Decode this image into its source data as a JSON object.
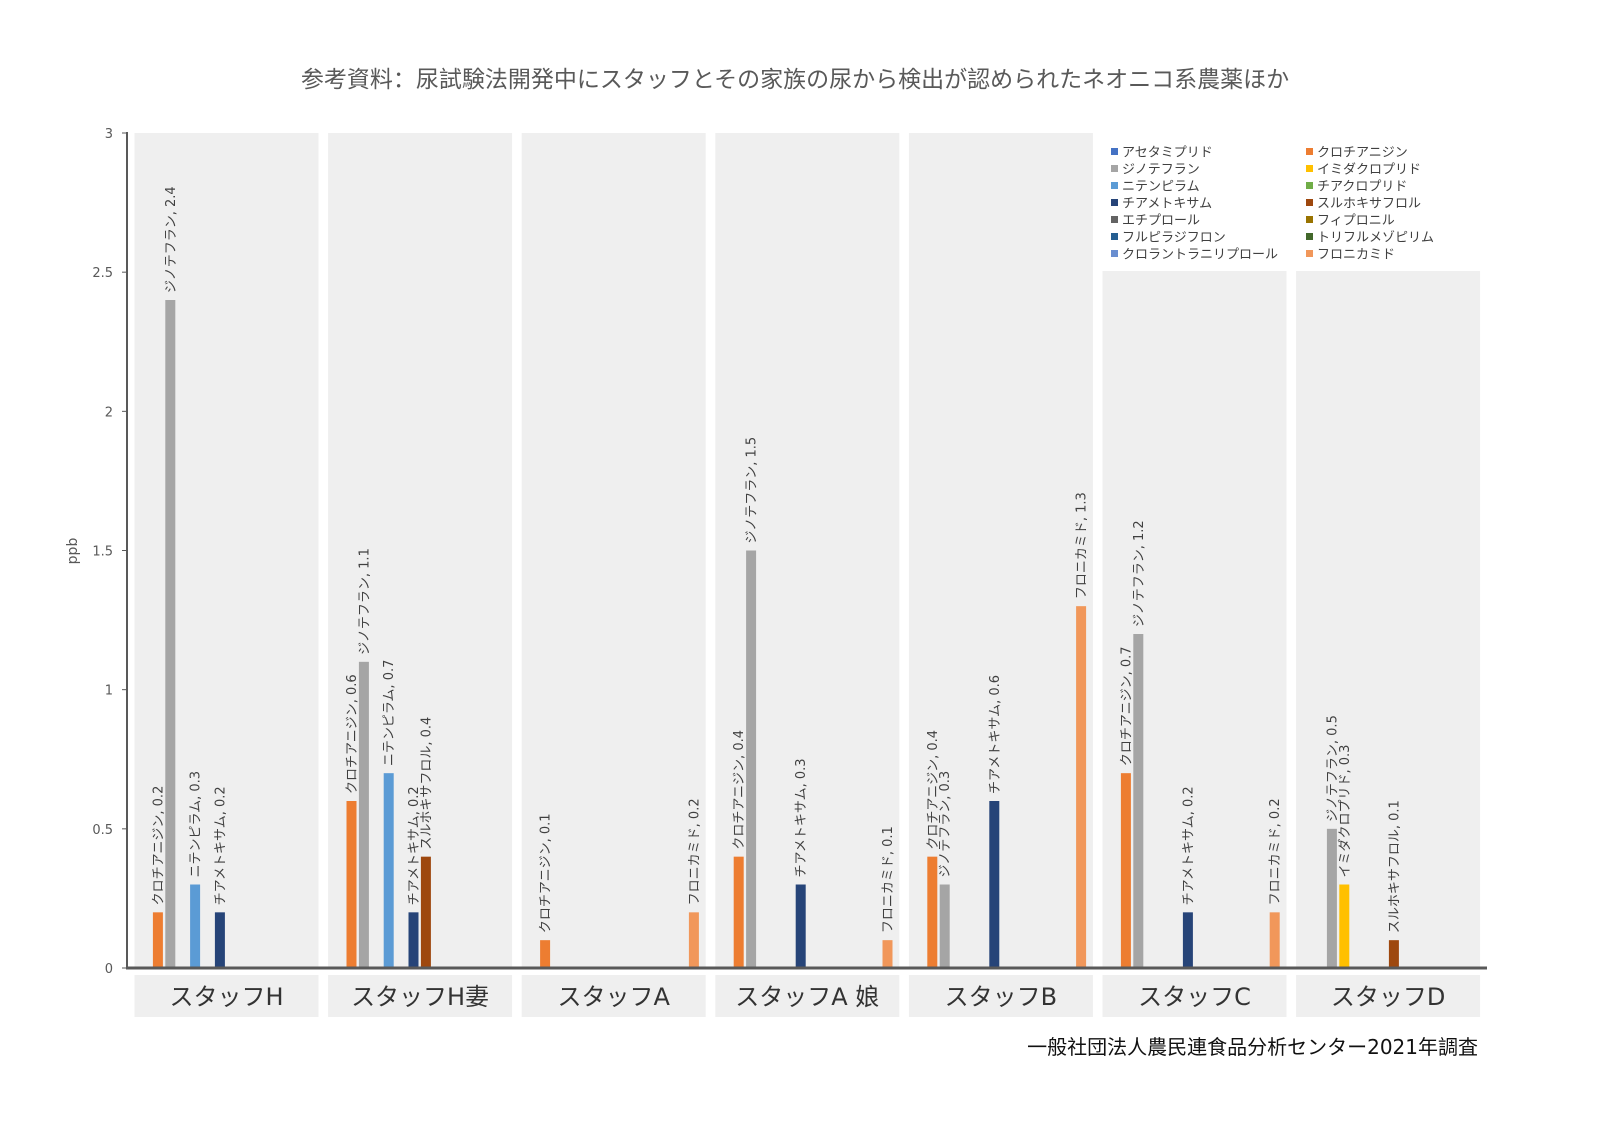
{
  "chart_data": {
    "type": "bar",
    "title": "参考資料：尿試験法開発中にスタッフとその家族の尿から検出が認められたネオニコ系農薬ほか",
    "xlabel": "",
    "ylabel": "ppb",
    "ylim": [
      0,
      3
    ],
    "yticks": [
      0,
      0.5,
      1,
      1.5,
      2,
      2.5,
      3
    ],
    "grid": false,
    "legend_position": "top-right",
    "categories": [
      "スタッフH",
      "スタッフH妻",
      "スタッフA",
      "スタッフA 娘",
      "スタッフB",
      "スタッフC",
      "スタッフD"
    ],
    "series": [
      {
        "name": "アセタミプリド",
        "color": "#4472C4",
        "values": [
          null,
          null,
          null,
          null,
          null,
          null,
          null
        ]
      },
      {
        "name": "クロチアニジン",
        "color": "#ED7D31",
        "values": [
          0.2,
          0.6,
          0.1,
          0.4,
          0.4,
          0.7,
          null
        ]
      },
      {
        "name": "ジノテフラン",
        "color": "#A5A5A5",
        "values": [
          2.4,
          1.1,
          null,
          1.5,
          0.3,
          1.2,
          0.5
        ]
      },
      {
        "name": "イミダクロプリド",
        "color": "#FFC000",
        "values": [
          null,
          null,
          null,
          null,
          null,
          null,
          0.3
        ]
      },
      {
        "name": "ニテンピラム",
        "color": "#5B9BD5",
        "values": [
          0.3,
          0.7,
          null,
          null,
          null,
          null,
          null
        ]
      },
      {
        "name": "チアクロプリド",
        "color": "#70AD47",
        "values": [
          null,
          null,
          null,
          null,
          null,
          null,
          null
        ]
      },
      {
        "name": "チアメトキサム",
        "color": "#264478",
        "values": [
          0.2,
          0.2,
          null,
          0.3,
          0.6,
          0.2,
          null
        ]
      },
      {
        "name": "スルホキサフロル",
        "color": "#9E480E",
        "values": [
          null,
          0.4,
          null,
          null,
          null,
          null,
          0.1
        ]
      },
      {
        "name": "エチプロール",
        "color": "#636363",
        "values": [
          null,
          null,
          null,
          null,
          null,
          null,
          null
        ]
      },
      {
        "name": "フィプロニル",
        "color": "#997300",
        "values": [
          null,
          null,
          null,
          null,
          null,
          null,
          null
        ]
      },
      {
        "name": "フルピラジフロン",
        "color": "#255E91",
        "values": [
          null,
          null,
          null,
          null,
          null,
          null,
          null
        ]
      },
      {
        "name": "トリフルメゾピリム",
        "color": "#43682B",
        "values": [
          null,
          null,
          null,
          null,
          null,
          null,
          null
        ]
      },
      {
        "name": "クロラントラニリプロール",
        "color": "#698ED0",
        "values": [
          null,
          null,
          null,
          null,
          null,
          null,
          null
        ]
      },
      {
        "name": "フロニカミド",
        "color": "#F1975A",
        "values": [
          null,
          null,
          0.2,
          0.1,
          1.3,
          0.2,
          null
        ]
      }
    ]
  },
  "source": "一般社団法人農民連食品分析センター2021年調査"
}
